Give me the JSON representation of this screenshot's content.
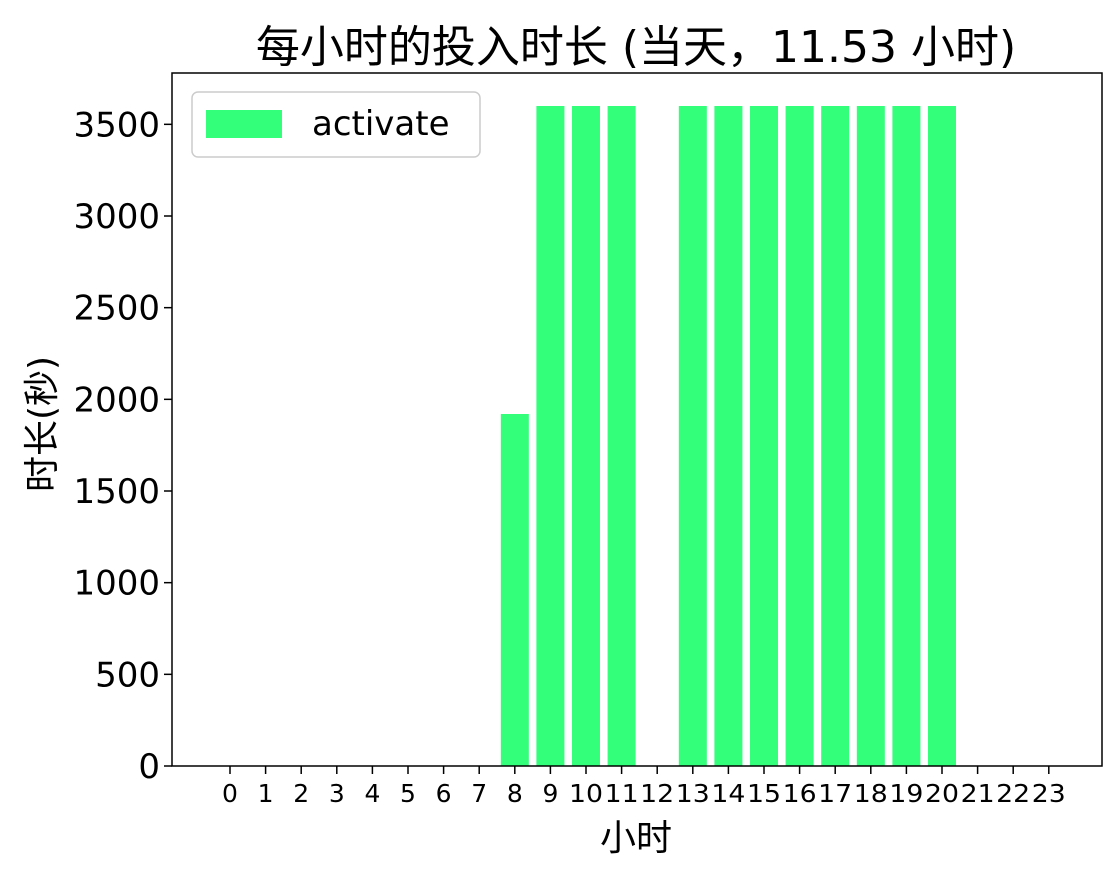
{
  "chart_data": {
    "type": "bar",
    "title": "每小时的投入时长 (当天，11.53 小时)",
    "xlabel": "小时",
    "ylabel": "时长(秒)",
    "categories": [
      "0",
      "1",
      "2",
      "3",
      "4",
      "5",
      "6",
      "7",
      "8",
      "9",
      "10",
      "11",
      "12",
      "13",
      "14",
      "15",
      "16",
      "17",
      "18",
      "19",
      "20",
      "21",
      "22",
      "23"
    ],
    "series": [
      {
        "name": "activate",
        "color": "#33ff7a",
        "values": [
          0,
          0,
          0,
          0,
          0,
          0,
          0,
          0,
          1920,
          3600,
          3600,
          3600,
          0,
          3600,
          3600,
          3600,
          3600,
          3600,
          3600,
          3600,
          3600,
          0,
          0,
          0
        ]
      }
    ],
    "ylim": [
      0,
      3780
    ],
    "yticks": [
      0,
      500,
      1000,
      1500,
      2000,
      2500,
      3000,
      3500
    ],
    "grid": false,
    "legend_position": "top-left"
  }
}
